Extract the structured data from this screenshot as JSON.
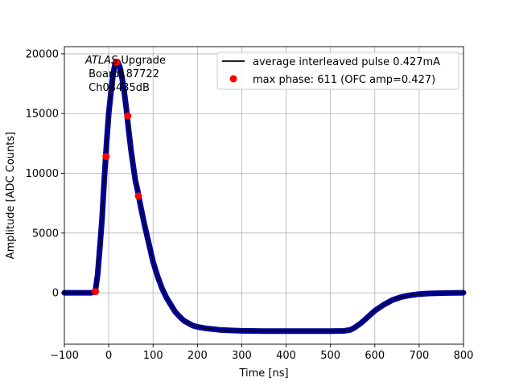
{
  "chart_data": {
    "type": "line",
    "title": "",
    "xlabel": "Time [ns]",
    "ylabel": "Amplitude [ADC Counts]",
    "xlim": [
      -100,
      800
    ],
    "ylim": [
      -4300,
      20600
    ],
    "xticks": [
      -100,
      0,
      100,
      200,
      300,
      400,
      500,
      600,
      700,
      800
    ],
    "yticks": [
      0,
      5000,
      10000,
      15000,
      20000
    ],
    "grid": true,
    "legend_position": "top-right",
    "annotation": {
      "line1_italic": "ATLAS",
      "line1_rest": " Upgrade",
      "line2": " Board187722",
      "line3": " Ch08435dB"
    },
    "series": [
      {
        "name": "average interleaved pulse 0.427mA",
        "kind": "line",
        "line_color": "#000000",
        "marker_color": "#00008b",
        "points": [
          [
            -100,
            0
          ],
          [
            -60,
            0
          ],
          [
            -40,
            0
          ],
          [
            -33,
            50
          ],
          [
            -30,
            200
          ],
          [
            -25,
            1500
          ],
          [
            -20,
            3800
          ],
          [
            -15,
            6200
          ],
          [
            -10,
            9500
          ],
          [
            -5,
            12500
          ],
          [
            0,
            15000
          ],
          [
            5,
            16800
          ],
          [
            10,
            18300
          ],
          [
            15,
            19300
          ],
          [
            20,
            19350
          ],
          [
            25,
            18900
          ],
          [
            30,
            18000
          ],
          [
            35,
            16800
          ],
          [
            40,
            15300
          ],
          [
            45,
            13600
          ],
          [
            50,
            12000
          ],
          [
            55,
            10700
          ],
          [
            60,
            9400
          ],
          [
            65,
            8600
          ],
          [
            70,
            7600
          ],
          [
            80,
            5800
          ],
          [
            90,
            4200
          ],
          [
            100,
            2600
          ],
          [
            110,
            1400
          ],
          [
            120,
            400
          ],
          [
            130,
            -400
          ],
          [
            140,
            -1000
          ],
          [
            150,
            -1600
          ],
          [
            160,
            -2000
          ],
          [
            170,
            -2350
          ],
          [
            180,
            -2550
          ],
          [
            190,
            -2750
          ],
          [
            200,
            -2850
          ],
          [
            220,
            -2980
          ],
          [
            250,
            -3100
          ],
          [
            275,
            -3150
          ],
          [
            300,
            -3180
          ],
          [
            350,
            -3200
          ],
          [
            400,
            -3200
          ],
          [
            450,
            -3200
          ],
          [
            500,
            -3200
          ],
          [
            530,
            -3190
          ],
          [
            545,
            -3100
          ],
          [
            555,
            -2900
          ],
          [
            570,
            -2500
          ],
          [
            585,
            -2000
          ],
          [
            600,
            -1500
          ],
          [
            620,
            -1000
          ],
          [
            640,
            -600
          ],
          [
            660,
            -350
          ],
          [
            680,
            -200
          ],
          [
            700,
            -110
          ],
          [
            720,
            -60
          ],
          [
            760,
            -20
          ],
          [
            800,
            0
          ]
        ]
      },
      {
        "name": "max phase: 611 (OFC amp=0.427)",
        "kind": "scatter",
        "color": "#ff0000",
        "points": [
          [
            -30,
            100
          ],
          [
            -6,
            11400
          ],
          [
            18,
            19300
          ],
          [
            43,
            14800
          ],
          [
            67,
            8100
          ]
        ]
      }
    ]
  }
}
